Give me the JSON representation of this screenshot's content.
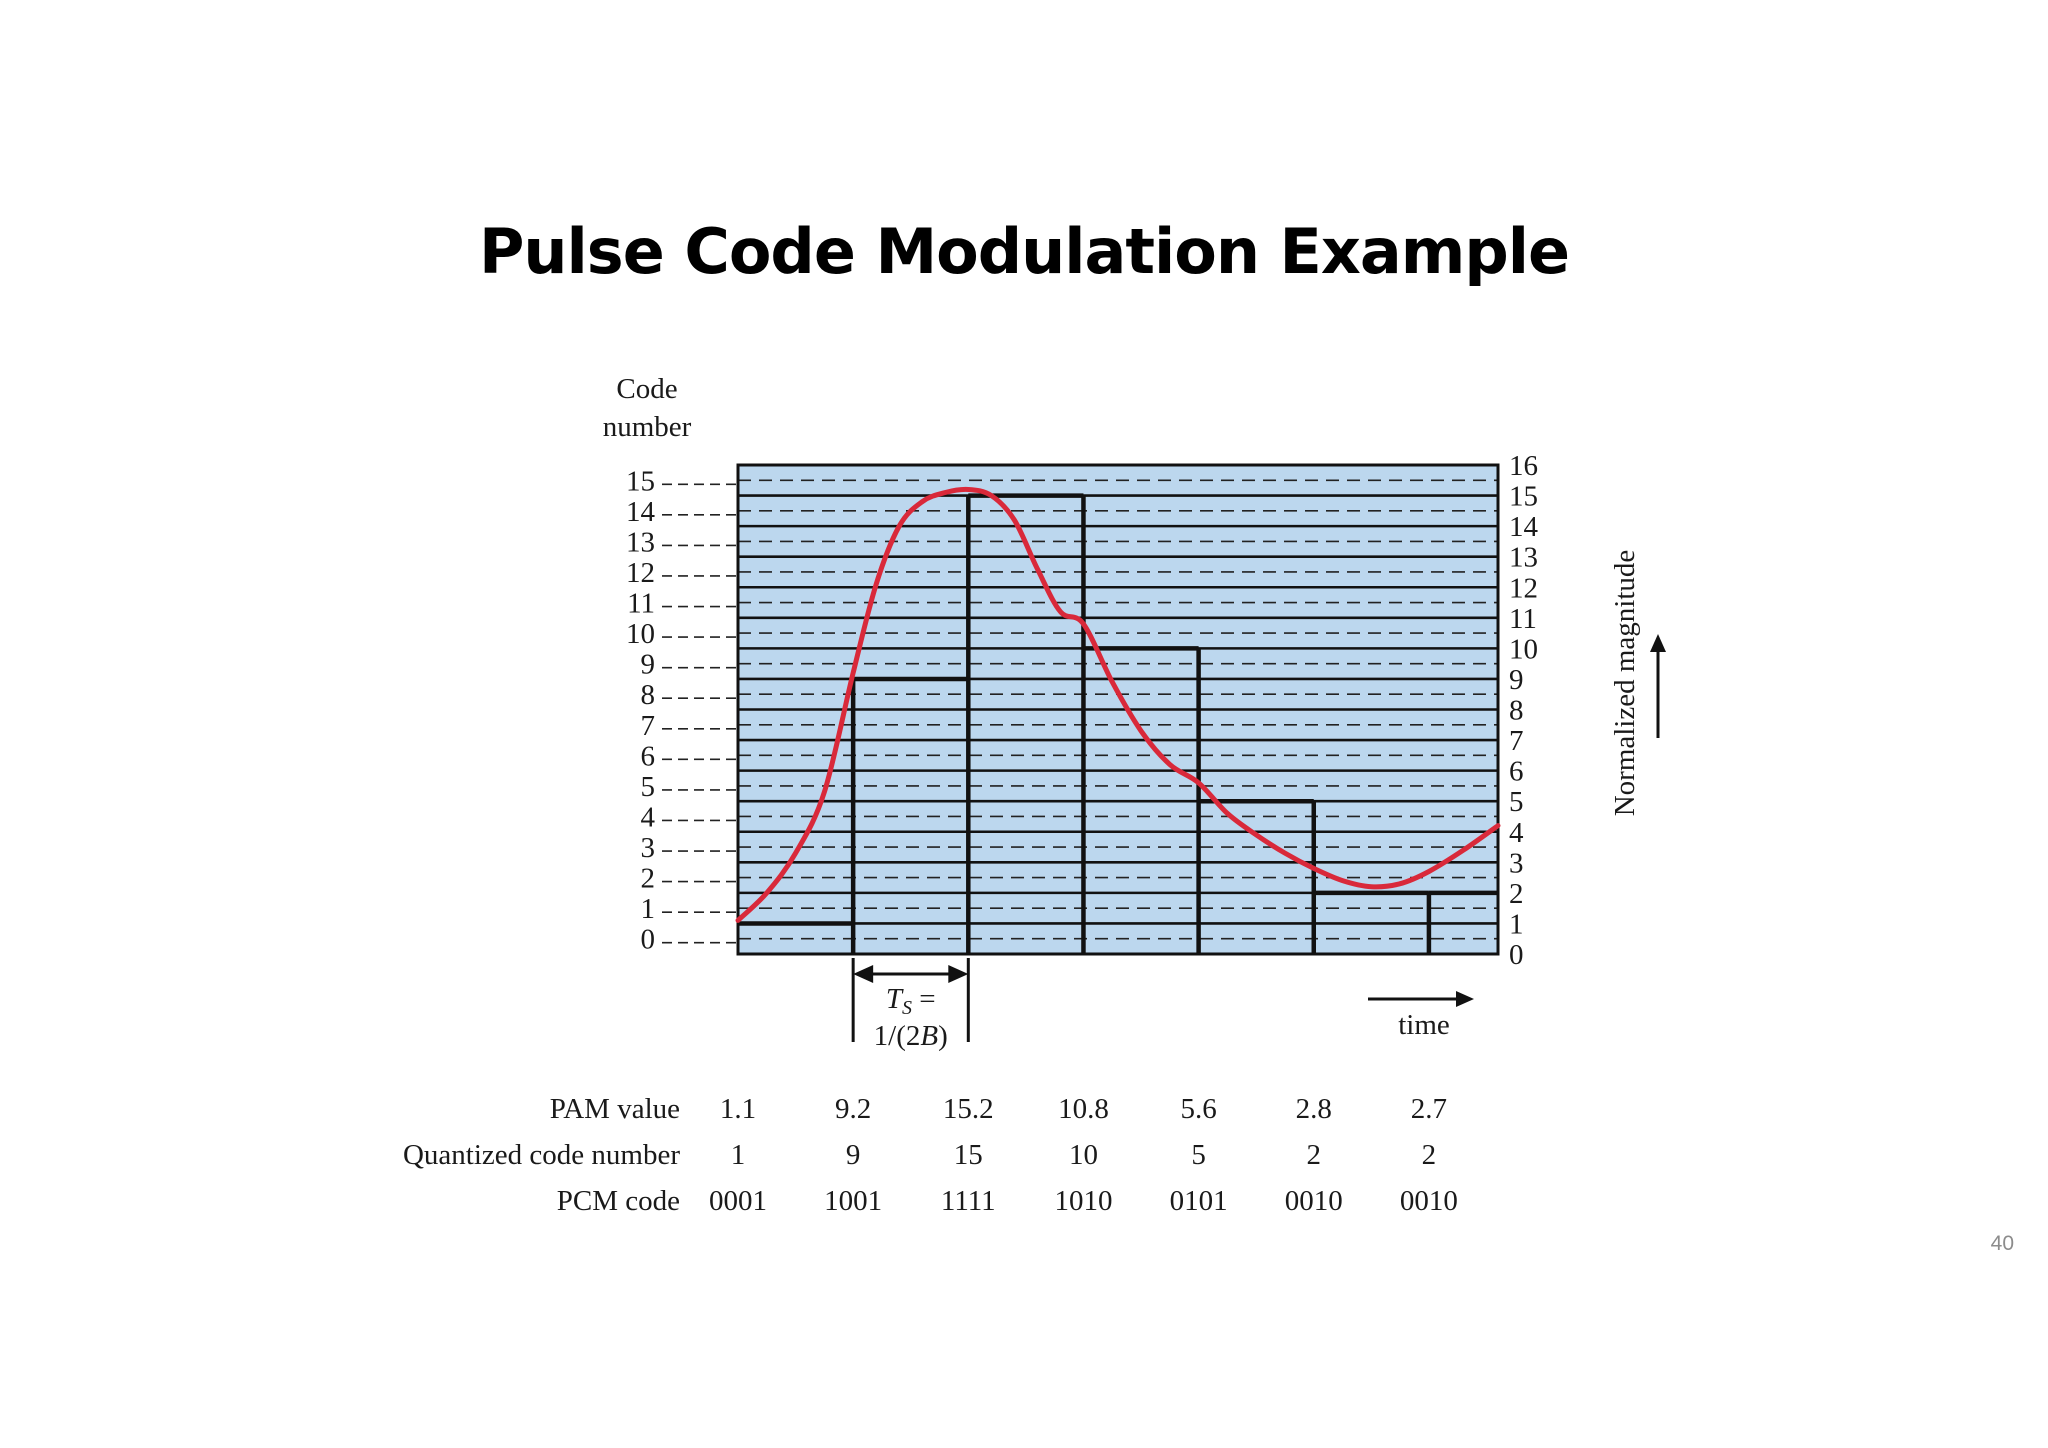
{
  "slide": {
    "title": "Pulse Code Modulation Example",
    "page_number": "40"
  },
  "chart_data": {
    "type": "line",
    "left_axis": {
      "label_lines": [
        "Code",
        "number"
      ],
      "ticks": [
        "0",
        "1",
        "2",
        "3",
        "4",
        "5",
        "6",
        "7",
        "8",
        "9",
        "10",
        "11",
        "12",
        "13",
        "14",
        "15"
      ]
    },
    "right_axis": {
      "label": "Normalized magnitude",
      "ticks": [
        "0",
        "1",
        "2",
        "3",
        "4",
        "5",
        "6",
        "7",
        "8",
        "9",
        "10",
        "11",
        "12",
        "13",
        "14",
        "15",
        "16"
      ],
      "range": [
        0,
        16
      ]
    },
    "x_axis": {
      "label": "time"
    },
    "sampling_interval": {
      "label_line1": "T",
      "subscript": "S",
      "label_suffix": " =",
      "label_line2_prefix": "1/(2",
      "label_line2_var": "B",
      "label_line2_suffix": ")"
    },
    "signal_curve": {
      "color": "#d9293a",
      "x": [
        0,
        0.25,
        0.5,
        0.75,
        1,
        1.2,
        1.4,
        1.6,
        1.8,
        2,
        2.2,
        2.4,
        2.6,
        2.8,
        3,
        3.25,
        3.5,
        3.75,
        4,
        4.25,
        4.5,
        4.75,
        5,
        5.25,
        5.5,
        5.75,
        6,
        6.3,
        6.6
      ],
      "y": [
        1.1,
        2.0,
        3.3,
        5.3,
        9.2,
        12.1,
        14.0,
        14.8,
        15.1,
        15.2,
        15.0,
        14.2,
        12.6,
        11.2,
        10.8,
        8.9,
        7.3,
        6.2,
        5.6,
        4.6,
        3.9,
        3.3,
        2.8,
        2.4,
        2.2,
        2.3,
        2.7,
        3.4,
        4.2
      ]
    },
    "samples": {
      "pam_values": [
        1.1,
        9.2,
        15.2,
        10.8,
        5.6,
        2.8,
        2.7
      ],
      "quantized_levels": [
        1,
        9,
        15,
        10,
        5,
        2,
        2
      ]
    },
    "table": {
      "row_labels": [
        "PAM value",
        "Quantized code number",
        "PCM code"
      ],
      "pam_value": [
        "1.1",
        "9.2",
        "15.2",
        "10.8",
        "5.6",
        "2.8",
        "2.7"
      ],
      "quantized_code_number": [
        "1",
        "9",
        "15",
        "10",
        "5",
        "2",
        "2"
      ],
      "pcm_code": [
        "0001",
        "1001",
        "1111",
        "1010",
        "0101",
        "0010",
        "0010"
      ]
    },
    "colors": {
      "plot_background": "#bcd7ee",
      "staircase": "#111111",
      "grid": "#111111"
    }
  }
}
